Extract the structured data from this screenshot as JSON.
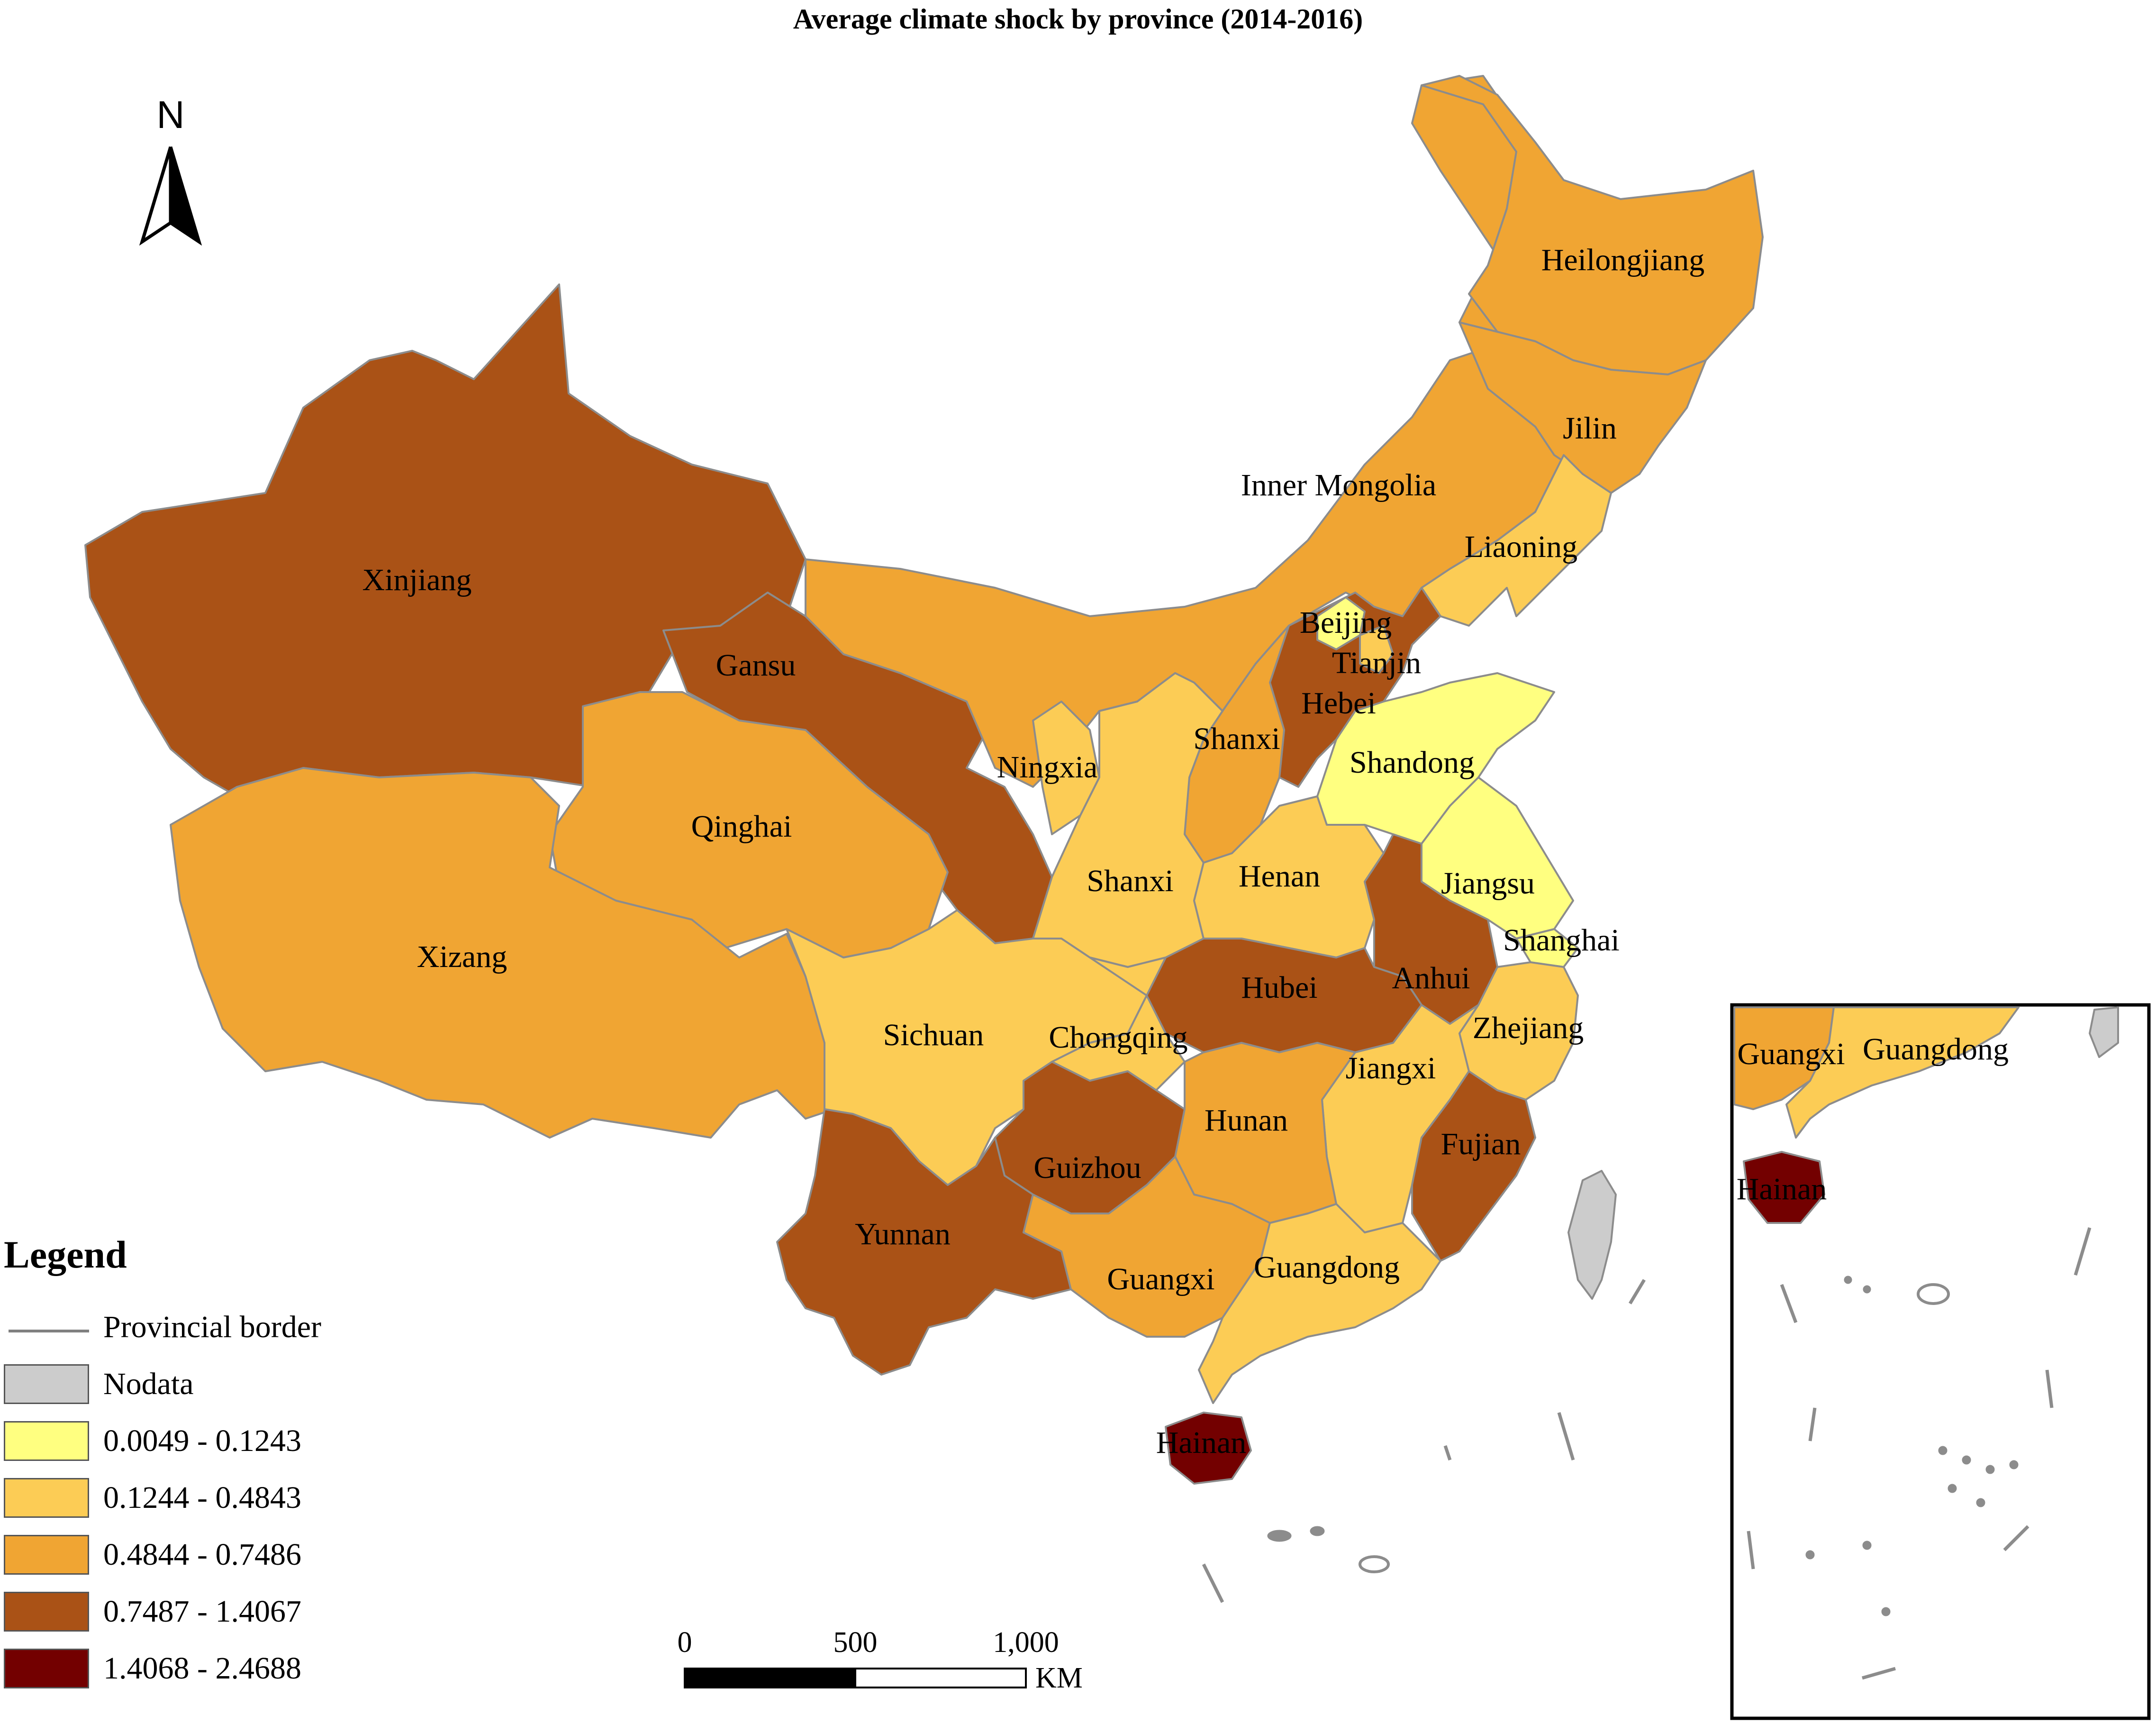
{
  "title": "Average climate shock by province (2014-2016)",
  "colors": {
    "class1": "#ffff80",
    "class2": "#fccc55",
    "class3": "#f0a533",
    "class4": "#aa5216",
    "class5": "#730000",
    "nodata": "#cccccc",
    "border": "#8c8c8c"
  },
  "north_label": "N",
  "provinces": [
    {
      "name": "Xinjiang",
      "class": "class4"
    },
    {
      "name": "Gansu",
      "class": "class4"
    },
    {
      "name": "Qinghai",
      "class": "class3"
    },
    {
      "name": "Xizang",
      "class": "class3"
    },
    {
      "name": "Inner Mongolia",
      "class": "class3"
    },
    {
      "name": "Heilongjiang",
      "class": "class3"
    },
    {
      "name": "Jilin",
      "class": "class3"
    },
    {
      "name": "Liaoning",
      "class": "class2"
    },
    {
      "name": "Beijing",
      "class": "class1"
    },
    {
      "name": "Tianjin",
      "class": "class2"
    },
    {
      "name": "Hebei",
      "class": "class4"
    },
    {
      "name": "Shanxi",
      "class": "class3"
    },
    {
      "name": "Shandong",
      "class": "class1"
    },
    {
      "name": "Ningxia",
      "class": "class2"
    },
    {
      "name": "Shaanxi",
      "label": "Shanxi",
      "class": "class2"
    },
    {
      "name": "Henan",
      "class": "class2"
    },
    {
      "name": "Jiangsu",
      "class": "class1"
    },
    {
      "name": "Shanghai",
      "class": "class1"
    },
    {
      "name": "Anhui",
      "class": "class4"
    },
    {
      "name": "Hubei",
      "class": "class4"
    },
    {
      "name": "Sichuan",
      "class": "class2"
    },
    {
      "name": "Chongqing",
      "class": "class2"
    },
    {
      "name": "Zhejiang",
      "class": "class2"
    },
    {
      "name": "Jiangxi",
      "class": "class2"
    },
    {
      "name": "Hunan",
      "class": "class3"
    },
    {
      "name": "Guizhou",
      "class": "class4"
    },
    {
      "name": "Fujian",
      "class": "class4"
    },
    {
      "name": "Yunnan",
      "class": "class4"
    },
    {
      "name": "Guangxi",
      "class": "class3"
    },
    {
      "name": "Guangdong",
      "class": "class2"
    },
    {
      "name": "Hainan",
      "class": "class5"
    },
    {
      "name": "Taiwan",
      "class": "nodata"
    }
  ],
  "inset_labels": [
    "Guangxi",
    "Guangdong",
    "Hainan"
  ],
  "legend": {
    "title": "Legend",
    "items": [
      {
        "label": "Provincial border",
        "kind": "line"
      },
      {
        "label": "Nodata",
        "class": "nodata"
      },
      {
        "label": "0.0049 - 0.1243",
        "class": "class1"
      },
      {
        "label": "0.1244 - 0.4843",
        "class": "class2"
      },
      {
        "label": "0.4844 - 0.7486",
        "class": "class3"
      },
      {
        "label": "0.7487 - 1.4067",
        "class": "class4"
      },
      {
        "label": "1.4068 - 2.4688",
        "class": "class5"
      }
    ]
  },
  "scale_bar": {
    "ticks": [
      "0",
      "500",
      "1,000"
    ],
    "unit": "KM"
  }
}
